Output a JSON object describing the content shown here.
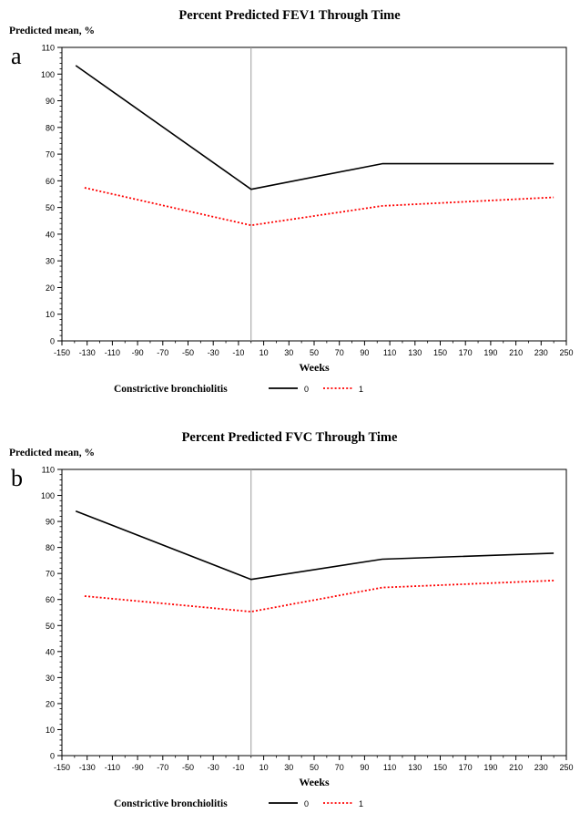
{
  "chart_data": [
    {
      "panel_label": "a",
      "type": "line",
      "title": "Percent Predicted FEV1 Through Time",
      "ylabel": "Predicted mean, %",
      "xlabel": "Weeks",
      "xlim": [
        -150,
        250
      ],
      "ylim": [
        0,
        110
      ],
      "xticks": [
        -150,
        -130,
        -110,
        -90,
        -70,
        -50,
        -30,
        -10,
        10,
        30,
        50,
        70,
        90,
        110,
        130,
        150,
        170,
        190,
        210,
        230,
        250
      ],
      "yticks": [
        0,
        10,
        20,
        30,
        40,
        50,
        60,
        70,
        80,
        90,
        100,
        110
      ],
      "reference_line_x": 0,
      "legend_title": "Constrictive bronchiolitis",
      "series": [
        {
          "name": "0",
          "color": "#000000",
          "style": "solid",
          "x": [
            -139,
            0,
            104,
            240
          ],
          "y": [
            103.2,
            56.8,
            66.4,
            66.4
          ]
        },
        {
          "name": "1",
          "color": "#ff0000",
          "style": "dotted",
          "x": [
            -132,
            0,
            104,
            240
          ],
          "y": [
            57.4,
            43.3,
            50.6,
            53.8
          ]
        }
      ]
    },
    {
      "panel_label": "b",
      "type": "line",
      "title": "Percent Predicted FVC Through Time",
      "ylabel": "Predicted mean, %",
      "xlabel": "Weeks",
      "xlim": [
        -150,
        250
      ],
      "ylim": [
        0,
        110
      ],
      "xticks": [
        -150,
        -130,
        -110,
        -90,
        -70,
        -50,
        -30,
        -10,
        10,
        30,
        50,
        70,
        90,
        110,
        130,
        150,
        170,
        190,
        210,
        230,
        250
      ],
      "yticks": [
        0,
        10,
        20,
        30,
        40,
        50,
        60,
        70,
        80,
        90,
        100,
        110
      ],
      "reference_line_x": 0,
      "legend_title": "Constrictive bronchiolitis",
      "series": [
        {
          "name": "0",
          "color": "#000000",
          "style": "solid",
          "x": [
            -139,
            0,
            104,
            240
          ],
          "y": [
            94.0,
            67.7,
            75.5,
            77.8
          ]
        },
        {
          "name": "1",
          "color": "#ff0000",
          "style": "dotted",
          "x": [
            -132,
            0,
            104,
            240
          ],
          "y": [
            61.3,
            55.3,
            64.6,
            67.3
          ]
        }
      ]
    }
  ]
}
